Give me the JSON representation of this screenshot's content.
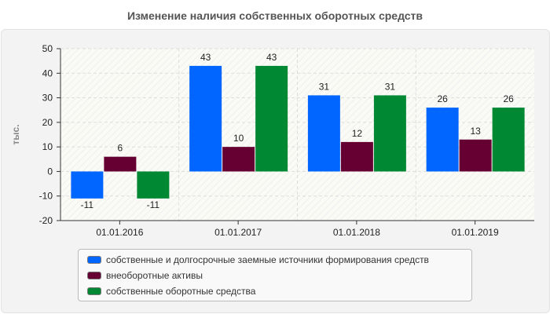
{
  "chart_data": {
    "type": "bar",
    "title": "Изменение наличия собственных оборотных средств",
    "ylabel": "тыс.",
    "xlabel": "",
    "ylim": [
      -20,
      50
    ],
    "yticks": [
      -20,
      -10,
      0,
      10,
      20,
      30,
      40,
      50
    ],
    "grid": true,
    "legend_position": "bottom",
    "categories": [
      "01.01.2016",
      "01.01.2017",
      "01.01.2018",
      "01.01.2019"
    ],
    "series": [
      {
        "name": "собственные и долгосрочные заемные источники формирования средств",
        "color": "#0066ff",
        "values": [
          -11,
          43,
          31,
          26
        ]
      },
      {
        "name": "внеоборотные активы",
        "color": "#660033",
        "values": [
          6,
          10,
          12,
          13
        ]
      },
      {
        "name": "собственные оборотные средства",
        "color": "#008833",
        "values": [
          -11,
          43,
          31,
          26
        ]
      }
    ]
  }
}
